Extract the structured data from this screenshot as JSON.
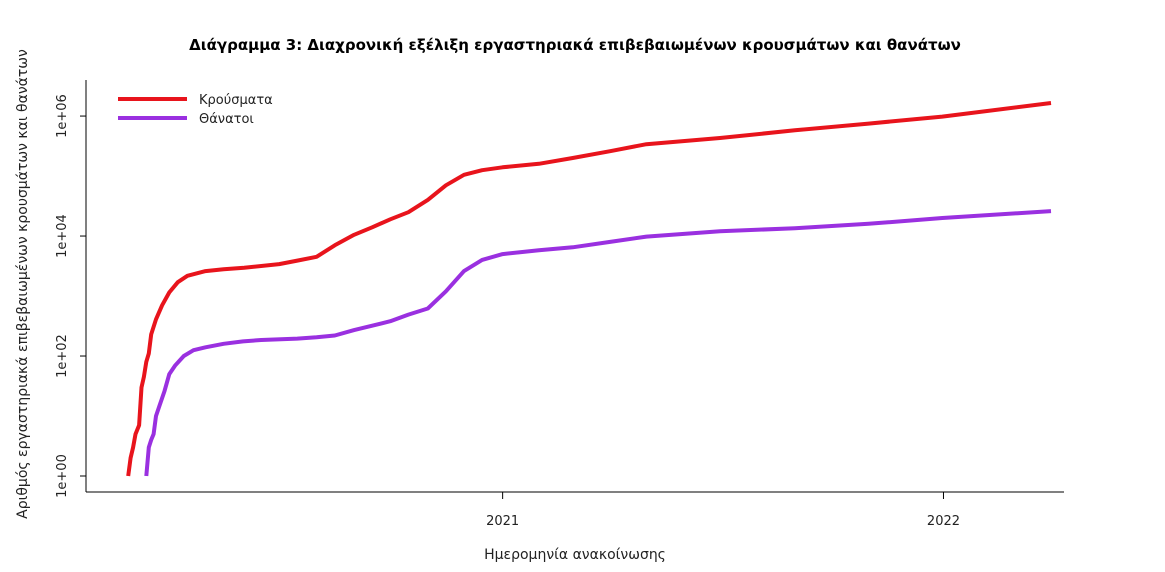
{
  "chart_data": {
    "type": "line",
    "title": "Διάγραμμα 3: Διαχρονική εξέλιξη εργαστηριακά επιβεβαιωμένων κρουσμάτων και θανάτων",
    "xlabel": "Ημερομηνία ανακοίνωσης",
    "ylabel": "Αριθμός εργαστηριακά επιβεβαιωμένων κρουσμάτων και θανάτων",
    "y_scale": "log10",
    "ylim": [
      1,
      2000000
    ],
    "xlim": [
      "2020-01-27",
      "2022-04-05"
    ],
    "x_ticks": [
      {
        "date": "2021-01-01",
        "label": "2021"
      },
      {
        "date": "2022-01-01",
        "label": "2022"
      }
    ],
    "y_ticks": [
      {
        "value": 1,
        "label": "1e+00"
      },
      {
        "value": 100,
        "label": "1e+02"
      },
      {
        "value": 10000,
        "label": "1e+04"
      },
      {
        "value": 1000000,
        "label": "1e+06"
      }
    ],
    "grid": false,
    "legend_position": "top-left",
    "series": [
      {
        "name": "Κρούσματα",
        "color": "#e8141c",
        "points": [
          [
            "2020-02-26",
            1
          ],
          [
            "2020-02-28",
            2
          ],
          [
            "2020-03-01",
            3
          ],
          [
            "2020-03-03",
            5
          ],
          [
            "2020-03-06",
            7
          ],
          [
            "2020-03-08",
            30
          ],
          [
            "2020-03-10",
            45
          ],
          [
            "2020-03-12",
            80
          ],
          [
            "2020-03-14",
            110
          ],
          [
            "2020-03-16",
            230
          ],
          [
            "2020-03-20",
            410
          ],
          [
            "2020-03-25",
            700
          ],
          [
            "2020-03-31",
            1150
          ],
          [
            "2020-04-07",
            1700
          ],
          [
            "2020-04-15",
            2170
          ],
          [
            "2020-04-30",
            2600
          ],
          [
            "2020-05-15",
            2800
          ],
          [
            "2020-06-01",
            2950
          ],
          [
            "2020-06-30",
            3400
          ],
          [
            "2020-07-15",
            3900
          ],
          [
            "2020-07-31",
            4500
          ],
          [
            "2020-08-15",
            7000
          ],
          [
            "2020-08-31",
            10500
          ],
          [
            "2020-09-15",
            14000
          ],
          [
            "2020-09-30",
            19000
          ],
          [
            "2020-10-15",
            25000
          ],
          [
            "2020-10-31",
            40000
          ],
          [
            "2020-11-15",
            70000
          ],
          [
            "2020-11-30",
            105000
          ],
          [
            "2020-12-15",
            125000
          ],
          [
            "2021-01-01",
            140000
          ],
          [
            "2021-01-31",
            160000
          ],
          [
            "2021-02-28",
            200000
          ],
          [
            "2021-03-31",
            260000
          ],
          [
            "2021-04-30",
            340000
          ],
          [
            "2021-06-30",
            430000
          ],
          [
            "2021-08-31",
            580000
          ],
          [
            "2021-10-31",
            750000
          ],
          [
            "2021-12-31",
            980000
          ],
          [
            "2022-03-31",
            1650000
          ]
        ]
      },
      {
        "name": "Θάνατοι",
        "color": "#9a30e0",
        "points": [
          [
            "2020-03-12",
            1
          ],
          [
            "2020-03-14",
            3
          ],
          [
            "2020-03-16",
            4
          ],
          [
            "2020-03-18",
            5
          ],
          [
            "2020-03-20",
            10
          ],
          [
            "2020-03-23",
            15
          ],
          [
            "2020-03-27",
            26
          ],
          [
            "2020-03-31",
            50
          ],
          [
            "2020-04-05",
            70
          ],
          [
            "2020-04-12",
            100
          ],
          [
            "2020-04-20",
            125
          ],
          [
            "2020-04-30",
            140
          ],
          [
            "2020-05-15",
            160
          ],
          [
            "2020-05-31",
            175
          ],
          [
            "2020-06-15",
            185
          ],
          [
            "2020-07-15",
            195
          ],
          [
            "2020-07-31",
            205
          ],
          [
            "2020-08-15",
            220
          ],
          [
            "2020-08-31",
            270
          ],
          [
            "2020-09-15",
            320
          ],
          [
            "2020-09-30",
            380
          ],
          [
            "2020-10-15",
            490
          ],
          [
            "2020-10-31",
            620
          ],
          [
            "2020-11-15",
            1200
          ],
          [
            "2020-11-30",
            2600
          ],
          [
            "2020-12-15",
            4000
          ],
          [
            "2021-01-01",
            5000
          ],
          [
            "2021-01-31",
            5800
          ],
          [
            "2021-02-28",
            6500
          ],
          [
            "2021-03-31",
            8000
          ],
          [
            "2021-04-30",
            9800
          ],
          [
            "2021-06-30",
            12000
          ],
          [
            "2021-08-31",
            13500
          ],
          [
            "2021-10-31",
            16000
          ],
          [
            "2021-12-31",
            20000
          ],
          [
            "2022-03-31",
            26000
          ]
        ]
      }
    ]
  }
}
